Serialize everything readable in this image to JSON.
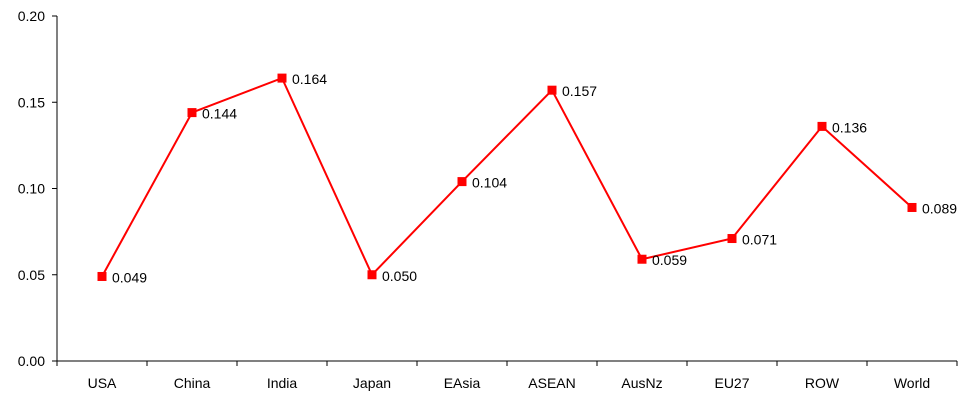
{
  "chart_data": {
    "type": "line",
    "categories": [
      "USA",
      "China",
      "India",
      "Japan",
      "EAsia",
      "ASEAN",
      "AusNz",
      "EU27",
      "ROW",
      "World"
    ],
    "series": [
      {
        "values": [
          0.049,
          0.144,
          0.164,
          0.05,
          0.104,
          0.157,
          0.059,
          0.071,
          0.136,
          0.089
        ],
        "data_labels": [
          "0.049",
          "0.144",
          "0.164",
          "0.050",
          "0.104",
          "0.157",
          "0.059",
          "0.071",
          "0.136",
          "0.089"
        ],
        "color": "#ff0000",
        "marker": "square"
      }
    ],
    "yticks": [
      "0.00",
      "0.05",
      "0.10",
      "0.15",
      "0.20"
    ],
    "ylim": [
      0,
      0.2
    ],
    "grid": false,
    "legend": "none",
    "title": "",
    "xlabel": "",
    "ylabel": ""
  }
}
